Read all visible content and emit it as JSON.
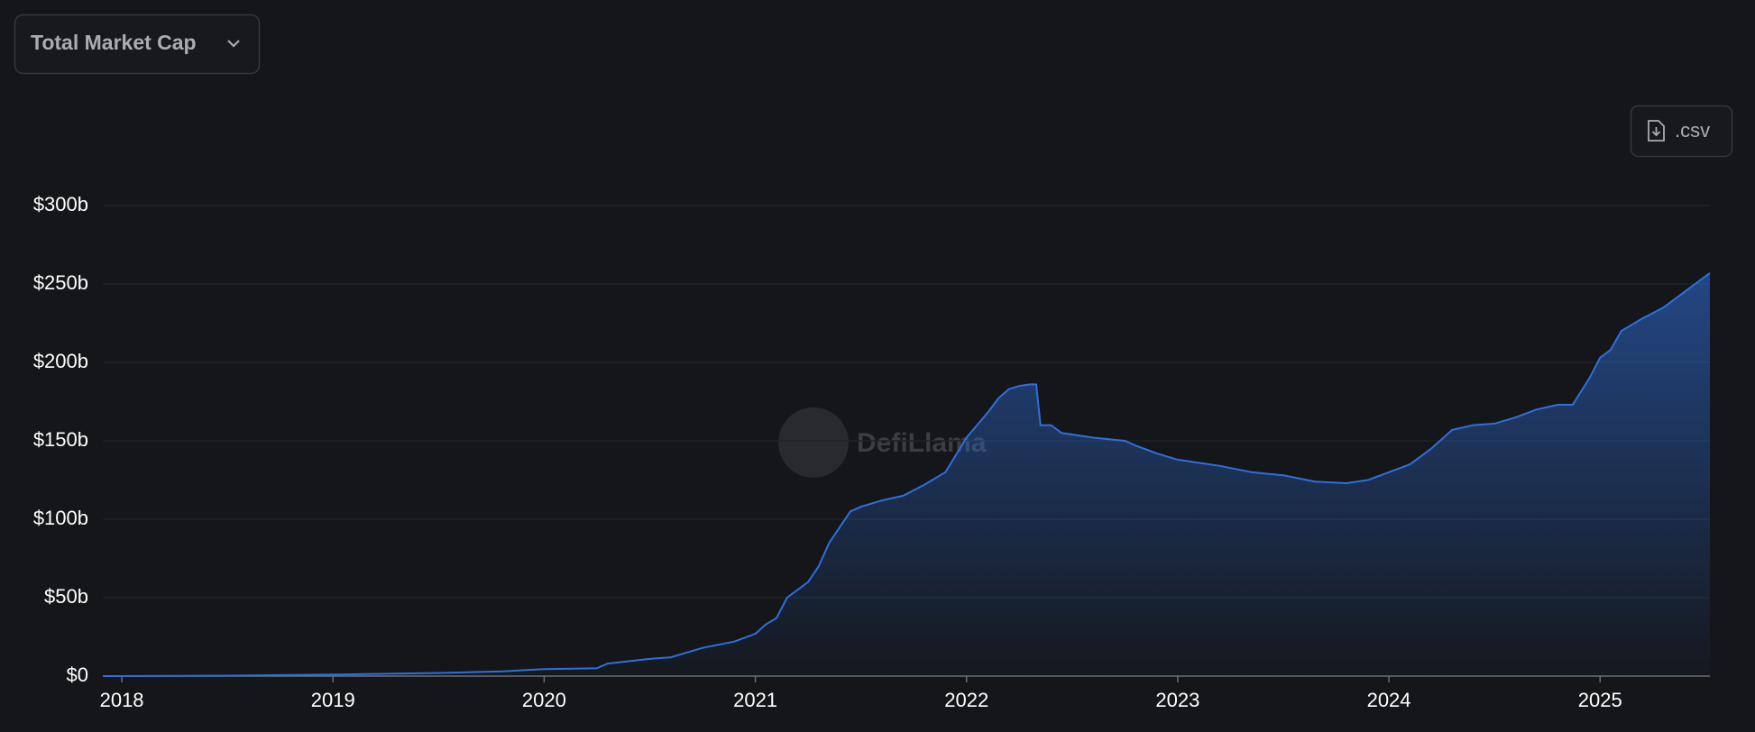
{
  "controls": {
    "metric_select": "Total Market Cap",
    "download": ".csv"
  },
  "watermark": "DefiLlama",
  "chart_data": {
    "type": "area",
    "x": [
      2017.91,
      2018.5,
      2019,
      2019.5,
      2019.8,
      2020,
      2020.25,
      2020.3,
      2020.5,
      2020.6,
      2020.75,
      2020.9,
      2021.0,
      2021.05,
      2021.1,
      2021.15,
      2021.25,
      2021.3,
      2021.35,
      2021.4,
      2021.45,
      2021.5,
      2021.6,
      2021.7,
      2021.8,
      2021.9,
      2022.0,
      2022.05,
      2022.1,
      2022.15,
      2022.2,
      2022.25,
      2022.3,
      2022.33,
      2022.35,
      2022.4,
      2022.45,
      2022.6,
      2022.75,
      2022.8,
      2022.9,
      2023.0,
      2023.1,
      2023.2,
      2023.35,
      2023.5,
      2023.65,
      2023.8,
      2023.9,
      2024.0,
      2024.1,
      2024.2,
      2024.3,
      2024.4,
      2024.5,
      2024.6,
      2024.7,
      2024.8,
      2024.87,
      2024.95,
      2025.0,
      2025.05,
      2025.1,
      2025.2,
      2025.3,
      2025.4,
      2025.52
    ],
    "values": [
      0,
      0.3,
      1,
      2,
      3,
      4.5,
      5,
      8,
      11,
      12,
      18,
      22,
      27,
      33,
      37,
      50,
      60,
      70,
      85,
      95,
      105,
      108,
      112,
      115,
      122,
      130,
      152,
      160,
      168,
      177,
      183,
      185,
      186,
      186,
      160,
      160,
      155,
      152,
      150,
      147,
      142,
      138,
      136,
      134,
      130,
      128,
      124,
      123,
      125,
      130,
      135,
      145,
      157,
      160,
      161,
      165,
      170,
      173,
      173,
      190,
      203,
      208,
      220,
      228,
      235,
      245,
      257
    ],
    "color": "#2f6fdc",
    "xlim": [
      2017.91,
      2025.52
    ],
    "xticks": [
      2018,
      2019,
      2020,
      2021,
      2022,
      2023,
      2024,
      2025
    ],
    "ylim": [
      0,
      300
    ],
    "yticks": [
      {
        "value": 0,
        "label": "$0"
      },
      {
        "value": 50,
        "label": "$50b"
      },
      {
        "value": 100,
        "label": "$100b"
      },
      {
        "value": 150,
        "label": "$150b"
      },
      {
        "value": 200,
        "label": "$200b"
      },
      {
        "value": 250,
        "label": "$250b"
      },
      {
        "value": 300,
        "label": "$300b"
      }
    ],
    "grid": true
  }
}
